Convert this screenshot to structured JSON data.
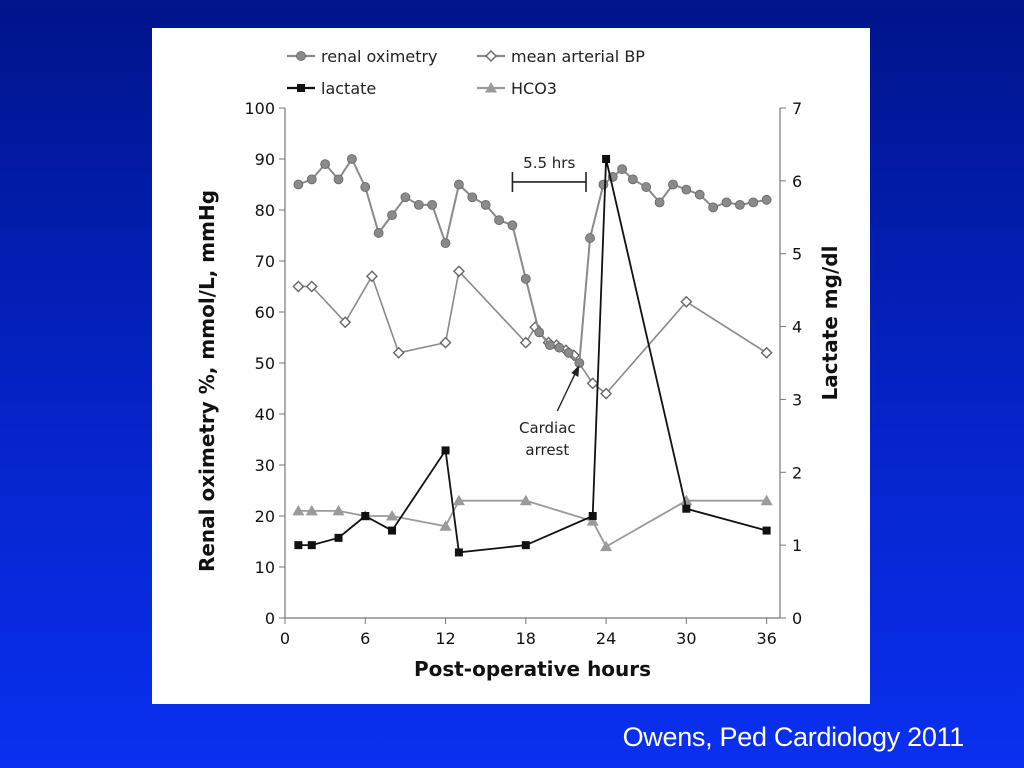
{
  "citation": "Owens, Ped Cardiology 2011",
  "chart_data": {
    "type": "line",
    "xlabel": "Post-operative hours",
    "ylabel_left": "Renal oximetry %, mmol/L, mmHg",
    "ylabel_right": "Lactate mg/dl",
    "xlim": [
      0,
      37
    ],
    "ylim_left": [
      0,
      100
    ],
    "ylim_right": [
      0,
      7
    ],
    "x_ticks": [
      0,
      6,
      12,
      18,
      24,
      30,
      36
    ],
    "y_left_ticks": [
      0,
      10,
      20,
      30,
      40,
      50,
      60,
      70,
      80,
      90,
      100
    ],
    "y_right_ticks": [
      0,
      1,
      2,
      3,
      4,
      5,
      6,
      7
    ],
    "grid": false,
    "legend": [
      "renal oximetry",
      "mean arterial BP",
      "lactate",
      "HCO3"
    ],
    "legend_position": "top",
    "colors": {
      "renal_oximetry": "#8a8a8a",
      "mean_arterial_bp": "#8a8a8a",
      "lactate": "#111111",
      "hco3": "#9a9a9a"
    },
    "series": [
      {
        "name": "renal oximetry",
        "axis": "left",
        "marker": "circle",
        "x": [
          1,
          2,
          3,
          4,
          5,
          6,
          7,
          8,
          9,
          10,
          11,
          12,
          13,
          14,
          15,
          16,
          17,
          18,
          19,
          19.8,
          20.5,
          21.2,
          22,
          22.8,
          23.8,
          24.5,
          25.2,
          26,
          27,
          28,
          29,
          30,
          31,
          32,
          33,
          34,
          35,
          36
        ],
        "y": [
          85,
          86,
          89,
          86,
          90,
          84.5,
          75.5,
          79,
          82.5,
          81,
          81,
          73.5,
          85,
          82.5,
          81,
          78,
          77,
          66.5,
          56,
          53.5,
          53,
          52,
          50,
          74.5,
          85,
          86.5,
          88,
          86,
          84.5,
          81.5,
          85,
          84,
          83,
          80.5,
          81.5,
          81,
          81.5,
          82
        ]
      },
      {
        "name": "mean arterial BP",
        "axis": "left",
        "marker": "diamond",
        "x": [
          1,
          2,
          4.5,
          6.5,
          8.5,
          12,
          13,
          18,
          18.7,
          19.7,
          20.3,
          21,
          21.6,
          23,
          24,
          30,
          36
        ],
        "y": [
          65,
          65,
          58,
          67,
          52,
          54,
          68,
          54,
          57,
          54,
          53.5,
          52.5,
          51.5,
          46,
          44,
          62,
          52
        ]
      },
      {
        "name": "lactate",
        "axis": "right",
        "marker": "square",
        "x": [
          1,
          2,
          4,
          6,
          8,
          12,
          13,
          18,
          23,
          24,
          30,
          36
        ],
        "y": [
          1.0,
          1.0,
          1.1,
          1.4,
          1.2,
          2.3,
          0.9,
          1.0,
          1.4,
          6.3,
          1.5,
          1.2
        ]
      },
      {
        "name": "HCO3",
        "axis": "left",
        "marker": "triangle",
        "x": [
          1,
          2,
          4,
          6,
          8,
          12,
          13,
          18,
          23,
          24,
          30,
          36
        ],
        "y": [
          21,
          21,
          21,
          20,
          20,
          18,
          23,
          23,
          19,
          14,
          23,
          23
        ]
      }
    ],
    "annotations": [
      {
        "text": "5.5 hrs",
        "type": "bracket",
        "x_start": 17,
        "x_end": 22.5,
        "y": 85.5
      },
      {
        "text_lines": [
          "Cardiac",
          "arrest"
        ],
        "type": "arrow",
        "points_to_x": 22,
        "points_to_y": 50
      }
    ]
  }
}
